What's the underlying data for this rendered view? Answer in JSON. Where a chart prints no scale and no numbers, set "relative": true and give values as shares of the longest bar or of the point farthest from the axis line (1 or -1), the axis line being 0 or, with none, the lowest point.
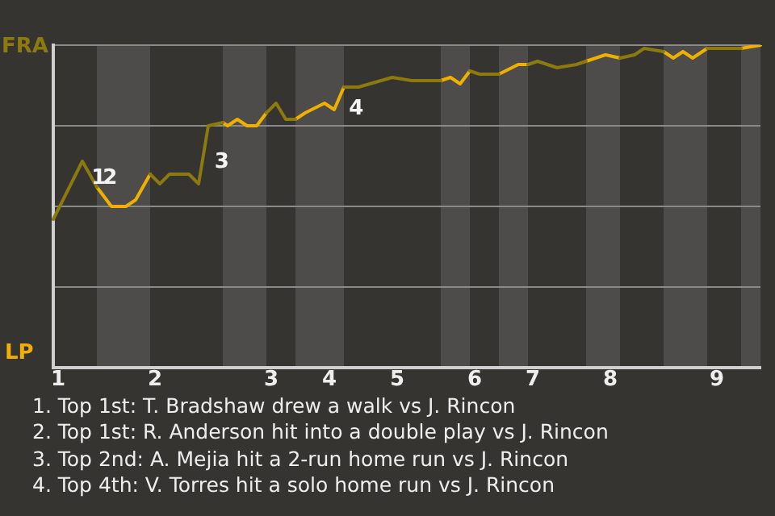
{
  "chart_data": {
    "type": "line",
    "relative": true,
    "categories": [
      null,
      "1",
      null,
      null,
      null,
      null,
      null,
      null,
      null,
      null,
      null,
      null,
      null,
      null,
      null,
      null,
      null,
      null,
      null,
      null,
      null,
      "2",
      null,
      null,
      null,
      null,
      null,
      null,
      null,
      null,
      null,
      null,
      null,
      null,
      null,
      null,
      null,
      null,
      null,
      null,
      null,
      null,
      null,
      null,
      null,
      "3",
      null,
      null,
      null,
      null,
      null,
      null,
      null,
      null,
      null,
      null,
      null,
      "4",
      null,
      null,
      null,
      null,
      null,
      null,
      null,
      null,
      null,
      null,
      null,
      null,
      null,
      "5",
      null,
      null,
      null,
      null,
      null,
      null,
      null,
      null,
      null,
      null,
      null,
      null,
      null,
      null,
      null,
      "6",
      null,
      null,
      null,
      null,
      null,
      null,
      null,
      null,
      null,
      null,
      null,
      "7",
      null,
      null,
      null,
      null,
      null,
      null,
      null,
      null,
      null,
      null,
      null,
      null,
      null,
      null,
      null,
      "8",
      null,
      null,
      null,
      null,
      null,
      null,
      null,
      null,
      null,
      null,
      null,
      null,
      null,
      null,
      null,
      null,
      null,
      null,
      null,
      null,
      null,
      "9",
      null,
      null,
      null,
      null,
      null,
      null,
      null,
      null,
      null
    ],
    "grid": "y",
    "legend": false,
    "marker": "none",
    "line_style": "solid",
    "series": [
      {
        "color": "#8c7a0e",
        "values": [
          0.46,
          null,
          null,
          null,
          null,
          null,
          0.64,
          null,
          null,
          0.56,
          null,
          null,
          null,
          null,
          null,
          null,
          null,
          null,
          null,
          null,
          0.6,
          null,
          0.57,
          null,
          0.6,
          null,
          null,
          null,
          0.6,
          null,
          0.57,
          null,
          0.75,
          null,
          null,
          0.76,
          null,
          null,
          null,
          null,
          null,
          null,
          null,
          null,
          0.79,
          null,
          0.82,
          null,
          0.77,
          null,
          0.77,
          null,
          null,
          null,
          null,
          null,
          null,
          null,
          null,
          null,
          0.87,
          null,
          null,
          0.87,
          null,
          null,
          null,
          null,
          null,
          null,
          0.9,
          null,
          null,
          null,
          0.89,
          null,
          null,
          null,
          null,
          null,
          0.89,
          null,
          null,
          null,
          null,
          null,
          0.92,
          null,
          0.91,
          null,
          null,
          null,
          0.91,
          null,
          null,
          null,
          null,
          null,
          0.94,
          null,
          0.95,
          null,
          null,
          null,
          0.93,
          null,
          null,
          null,
          0.94,
          null,
          0.95,
          null,
          null,
          null,
          null,
          null,
          null,
          0.96,
          null,
          null,
          0.97,
          null,
          0.99,
          null,
          null,
          null,
          0.98,
          null,
          null,
          null,
          null,
          null,
          null,
          null,
          null,
          0.99,
          null,
          0.99,
          null,
          null,
          null,
          null,
          0.99,
          null,
          null,
          null,
          null
        ]
      },
      {
        "color": "#f0b000",
        "values": [
          null,
          null,
          null,
          null,
          null,
          null,
          null,
          null,
          null,
          0.56,
          null,
          null,
          0.5,
          null,
          null,
          0.5,
          null,
          0.52,
          null,
          null,
          0.6,
          null,
          null,
          null,
          null,
          null,
          null,
          null,
          null,
          null,
          null,
          null,
          null,
          null,
          null,
          0.76,
          0.75,
          null,
          0.77,
          null,
          0.75,
          null,
          0.75,
          null,
          0.79,
          null,
          null,
          null,
          null,
          null,
          0.77,
          null,
          0.79,
          null,
          null,
          null,
          0.82,
          null,
          0.8,
          null,
          0.87,
          null,
          null,
          null,
          null,
          null,
          null,
          null,
          null,
          null,
          null,
          null,
          null,
          null,
          null,
          null,
          null,
          null,
          null,
          null,
          0.89,
          null,
          0.9,
          null,
          0.88,
          null,
          0.92,
          null,
          null,
          null,
          null,
          null,
          0.91,
          null,
          null,
          null,
          0.94,
          null,
          0.94,
          null,
          null,
          null,
          null,
          null,
          null,
          null,
          null,
          null,
          null,
          null,
          0.95,
          null,
          null,
          null,
          0.97,
          null,
          null,
          0.96,
          null,
          null,
          null,
          null,
          null,
          null,
          null,
          null,
          0.98,
          null,
          0.96,
          null,
          0.98,
          null,
          0.96,
          null,
          null,
          0.99,
          null,
          null,
          null,
          null,
          null,
          null,
          0.99,
          null,
          null,
          null,
          1
        ]
      }
    ],
    "annotations": [
      "FRA",
      "LP",
      "1",
      "2",
      "3",
      "4",
      "1. Top 1st: T. Bradshaw drew a walk vs J. Rincon",
      "2. Top 1st: R. Anderson hit into a double play vs J. Rincon",
      "3. Top 2nd: A. Mejia hit a 2-run home run vs J. Rincon",
      "4. Top 4th: V. Torres hit a solo home run vs J. Rincon"
    ]
  }
}
